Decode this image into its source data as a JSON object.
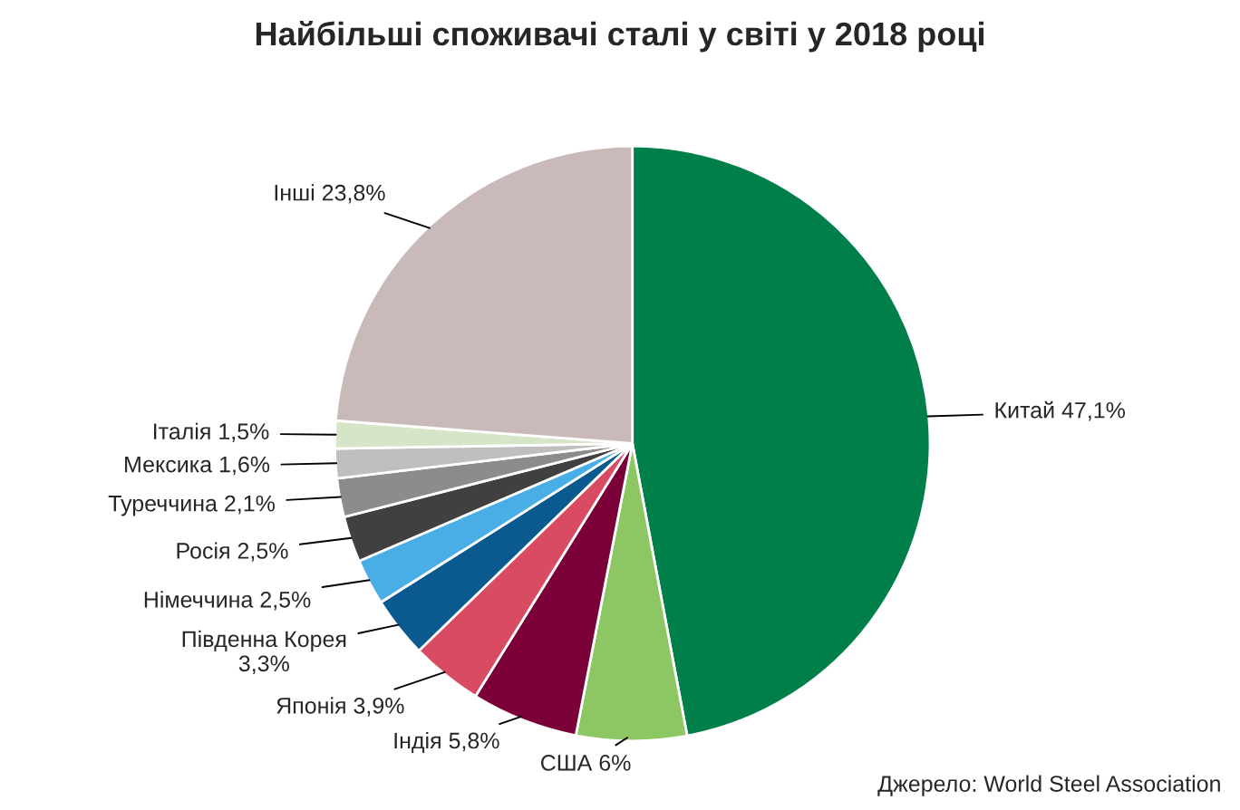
{
  "chart_data": {
    "type": "pie",
    "title": "Найбільші споживачі сталі у світі у 2018 році",
    "categories": [
      "Китай",
      "США",
      "Індія",
      "Японія",
      "Південна Корея",
      "Німеччина",
      "Росія",
      "Туреччина",
      "Мексика",
      "Італія",
      "Інші"
    ],
    "values": [
      47.1,
      6,
      5.8,
      3.9,
      3.3,
      2.5,
      2.5,
      2.1,
      1.6,
      1.5,
      23.8
    ],
    "value_labels": [
      "47,1%",
      "6%",
      "5,8%",
      "3,9%",
      "3,3%",
      "2,5%",
      "2,5%",
      "2,1%",
      "1,6%",
      "1,5%",
      "23,8%"
    ],
    "colors": [
      "#007f4a",
      "#8dc764",
      "#7b0038",
      "#d94a63",
      "#0a5a8f",
      "#4aaee6",
      "#404040",
      "#8c8c8c",
      "#bfbfbf",
      "#d6e5c8",
      "#c9b9b9"
    ],
    "legend": false,
    "annotations": [
      "Джерело: World Steel Association"
    ]
  }
}
